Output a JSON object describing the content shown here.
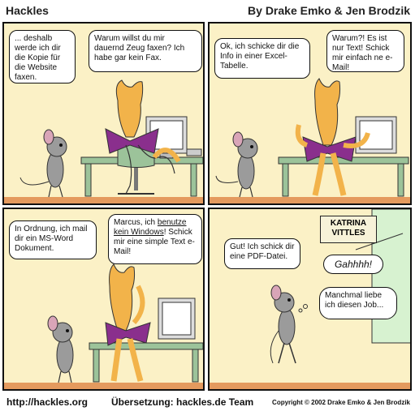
{
  "header": {
    "title": "Hackles",
    "authors": "By Drake Emko & Jen Brodzik"
  },
  "panels": [
    {
      "bubbles": [
        "... deshalb werde ich dir die Kopie für die Website faxen.",
        "Warum willst du mir dauernd Zeug faxen? Ich habe gar kein Fax."
      ]
    },
    {
      "bubbles": [
        "Ok, ich schicke dir die Info in einer Excel-Tabelle.",
        "Warum?! Es ist nur Text! Schick mir einfach ne e-Mail!"
      ]
    },
    {
      "bubbles": [
        "In Ordnung, ich mail dir ein MS-Word Dokument.",
        "Marcus, ich ",
        "benutze kein Windows",
        "! Schick mir eine simple Text e-Mail!"
      ]
    },
    {
      "sign": "KATRINA VITTLES",
      "bubbles": [
        "Gut! Ich schick dir eine PDF-Datei.",
        "Gahhhh!",
        "Manchmal liebe ich diesen Job..."
      ]
    }
  ],
  "footer": {
    "url": "http://hackles.org",
    "translation": "Übersetzung: hackles.de Team",
    "copyright": "Copyright © 2002 Drake Emko & Jen Brodzik"
  },
  "colors": {
    "wall": "#fbf1c6",
    "floor": "#e49a5e",
    "desk": "#9cc39a",
    "cat": "#f2b34a",
    "bow": "#8a2f8d",
    "mouse": "#9b9b9b",
    "door": "#d7f2d0"
  }
}
